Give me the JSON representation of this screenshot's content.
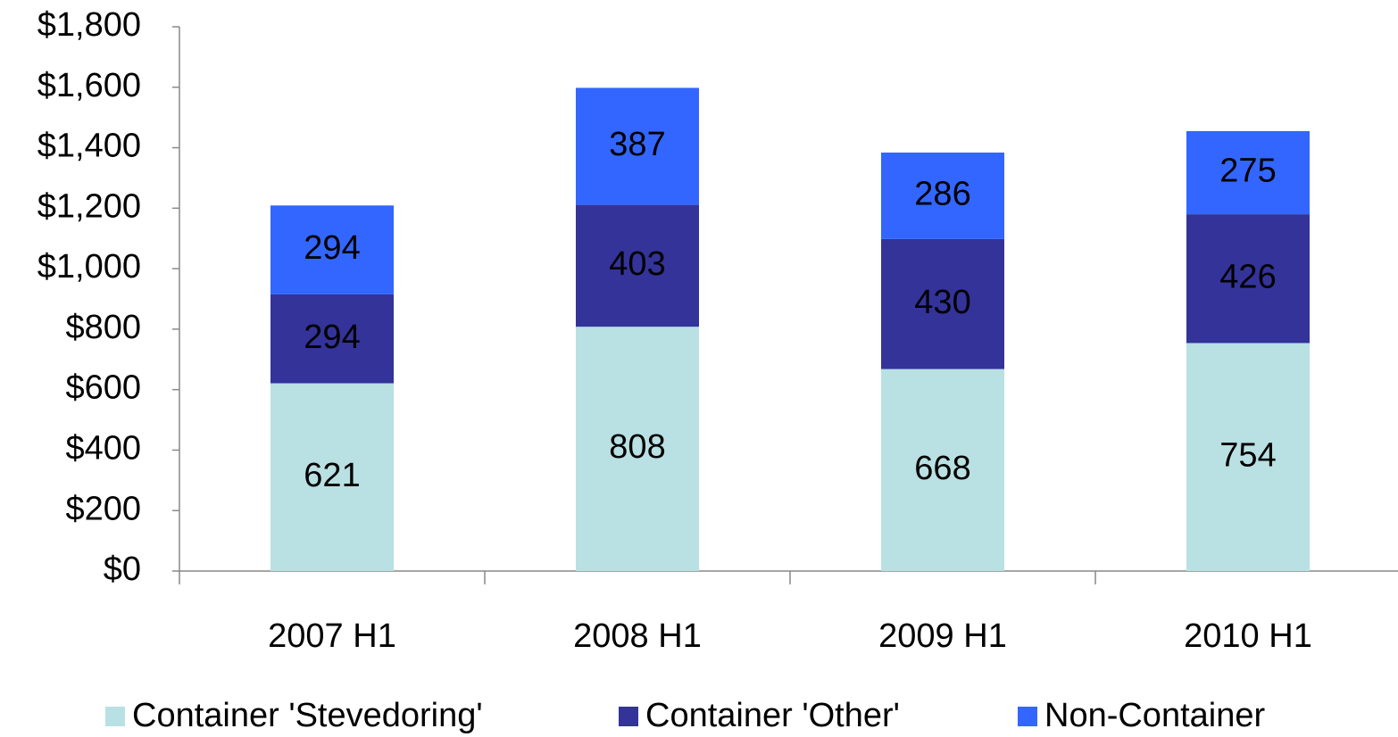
{
  "chart_data": {
    "type": "stacked_bar",
    "categories": [
      "2007 H1",
      "2008 H1",
      "2009 H1",
      "2010 H1"
    ],
    "series": [
      {
        "name": "Container 'Stevedoring'",
        "color": "#b9e0e3",
        "values": [
          621,
          808,
          668,
          754
        ]
      },
      {
        "name": "Container 'Other'",
        "color": "#333399",
        "values": [
          294,
          403,
          430,
          426
        ]
      },
      {
        "name": "Non-Container",
        "color": "#3366ff",
        "values": [
          294,
          387,
          286,
          275
        ]
      }
    ],
    "ylim": [
      0,
      1800
    ],
    "yticks": [
      {
        "value": 0,
        "label": "$0"
      },
      {
        "value": 200,
        "label": "$200"
      },
      {
        "value": 400,
        "label": "$400"
      },
      {
        "value": 600,
        "label": "$600"
      },
      {
        "value": 800,
        "label": "$800"
      },
      {
        "value": 1000,
        "label": "$1,000"
      },
      {
        "value": 1200,
        "label": "$1,200"
      },
      {
        "value": 1400,
        "label": "$1,400"
      },
      {
        "value": 1600,
        "label": "$1,600"
      },
      {
        "value": 1800,
        "label": "$1,800"
      }
    ],
    "legend": "bottom"
  }
}
